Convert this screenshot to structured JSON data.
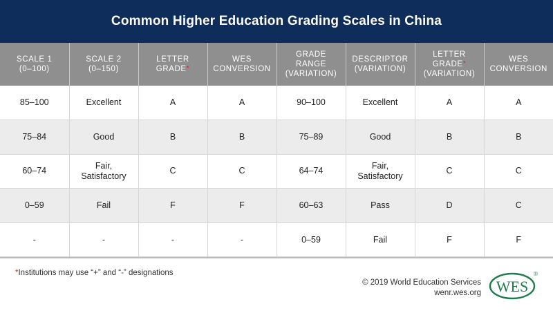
{
  "title": "Common Higher Education Grading Scales in China",
  "headers": [
    {
      "lines": [
        "SCALE 1",
        "(0–100)"
      ],
      "asterisk": false
    },
    {
      "lines": [
        "SCALE 2",
        "(0–150)"
      ],
      "asterisk": false
    },
    {
      "lines": [
        "LETTER",
        "GRADE"
      ],
      "asterisk": true
    },
    {
      "lines": [
        "WES",
        "CONVERSION"
      ],
      "asterisk": false
    },
    {
      "lines": [
        "GRADE",
        "RANGE",
        "(VARIATION)"
      ],
      "asterisk": false
    },
    {
      "lines": [
        "DESCRIPTOR",
        "(VARIATION)"
      ],
      "asterisk": false
    },
    {
      "lines": [
        "LETTER",
        "GRADE",
        "(VARIATION)"
      ],
      "asterisk": true
    },
    {
      "lines": [
        "WES",
        "CONVERSION"
      ],
      "asterisk": false
    }
  ],
  "asterisk_symbol": "*",
  "rows": [
    [
      "85–100",
      "Excellent",
      "A",
      "A",
      "90–100",
      "Excellent",
      "A",
      "A"
    ],
    [
      "75–84",
      "Good",
      "B",
      "B",
      "75–89",
      "Good",
      "B",
      "B"
    ],
    [
      "60–74",
      "Fair,\nSatisfactory",
      "C",
      "C",
      "64–74",
      "Fair,\nSatisfactory",
      "C",
      "C"
    ],
    [
      "0–59",
      "Fail",
      "F",
      "F",
      "60–63",
      "Pass",
      "D",
      "C"
    ],
    [
      "-",
      "-",
      "-",
      "-",
      "0–59",
      "Fail",
      "F",
      "F"
    ]
  ],
  "footnote": {
    "marker": "*",
    "text": "Institutions may use “+” and “-” designations"
  },
  "credit": {
    "copyright": "© 2019 World Education Services",
    "url": "wenr.wes.org"
  },
  "logo": {
    "text": "WES",
    "mark": "®",
    "color": "#1e7b4a"
  }
}
